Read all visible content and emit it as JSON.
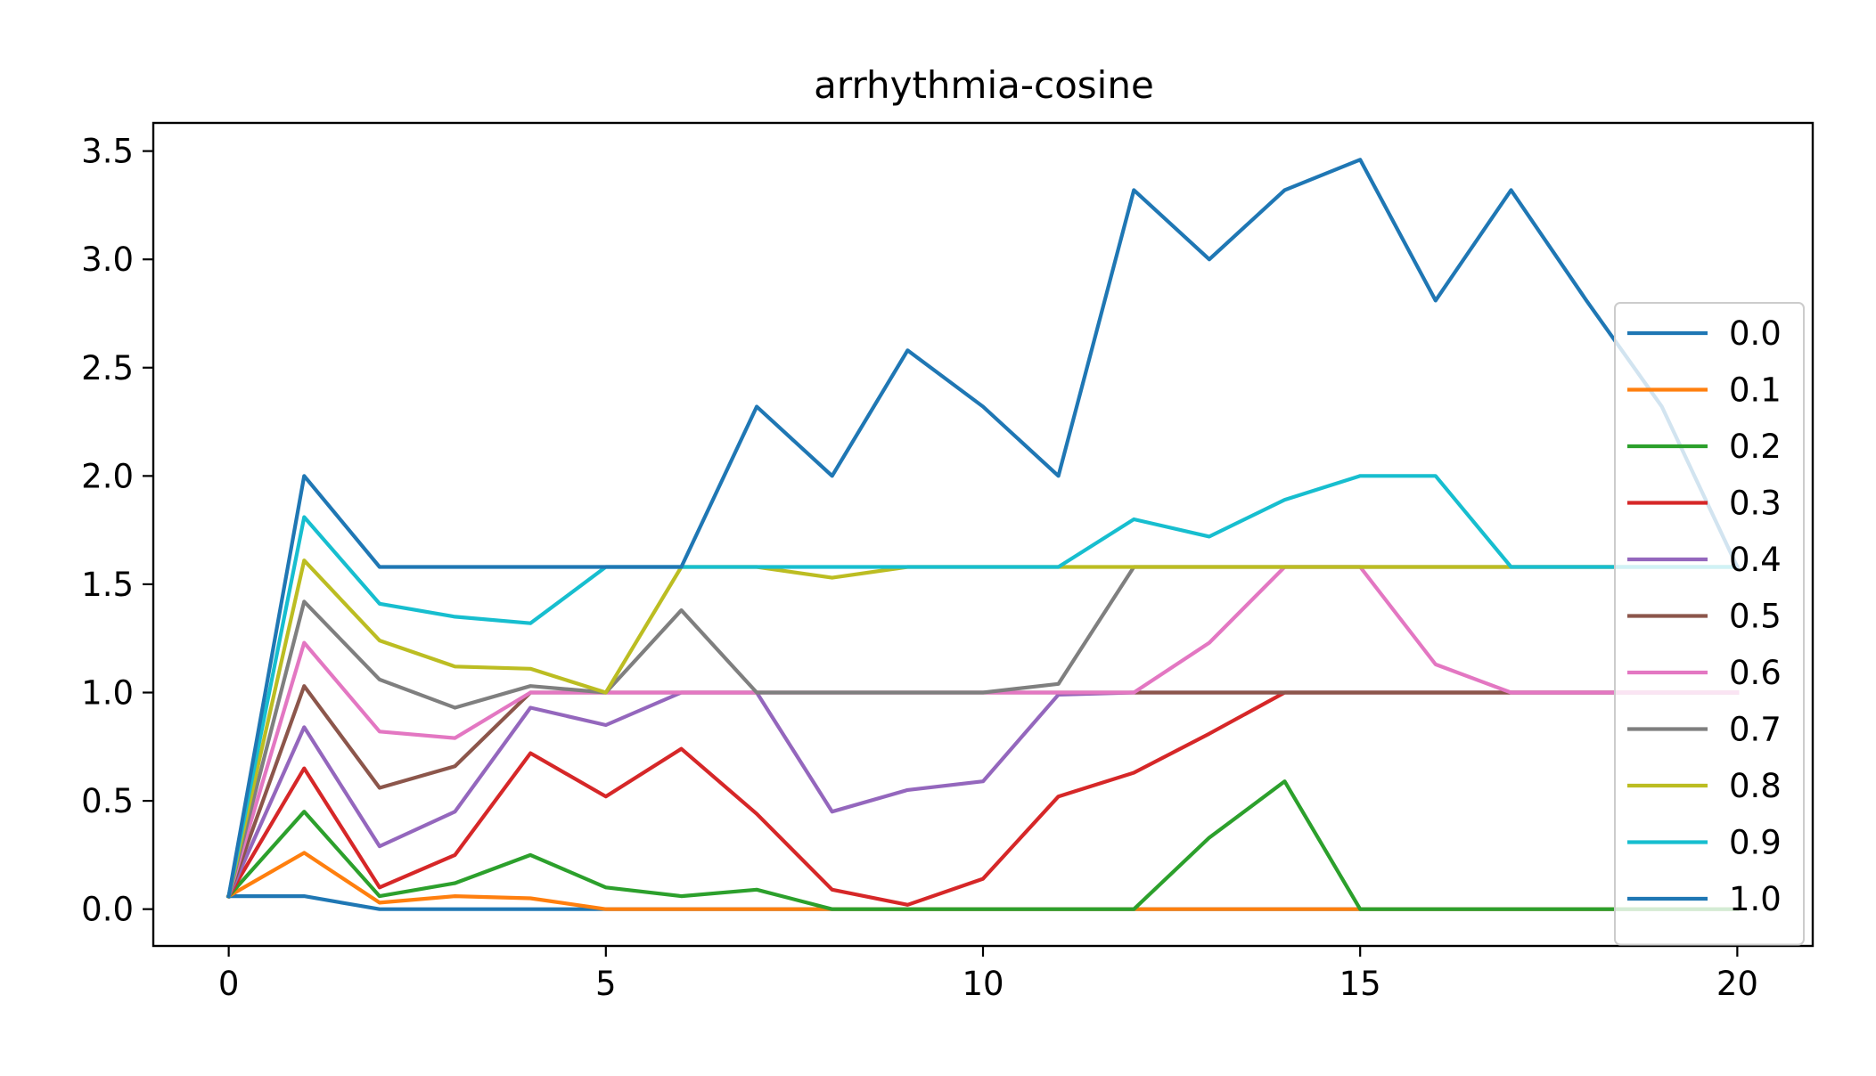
{
  "chart_data": {
    "type": "line",
    "title": "arrhythmia-cosine",
    "xlabel": "",
    "ylabel": "",
    "xlim": [
      -1,
      21
    ],
    "ylim": [
      -0.17,
      3.63
    ],
    "xticks": [
      0,
      5,
      10,
      15,
      20
    ],
    "xtick_labels": [
      "0",
      "5",
      "10",
      "15",
      "20"
    ],
    "yticks": [
      0.0,
      0.5,
      1.0,
      1.5,
      2.0,
      2.5,
      3.0,
      3.5
    ],
    "ytick_labels": [
      "0.0",
      "0.5",
      "1.0",
      "1.5",
      "2.0",
      "2.5",
      "3.0",
      "3.5"
    ],
    "grid": false,
    "legend_position": "right",
    "x": [
      0,
      1,
      2,
      3,
      4,
      5,
      6,
      7,
      8,
      9,
      10,
      11,
      12,
      13,
      14,
      15,
      16,
      17,
      18,
      19,
      20
    ],
    "series": [
      {
        "name": "0.0",
        "color": "#1f77b4",
        "values": [
          0.06,
          0.06,
          0.0,
          0.0,
          0.0,
          0.0,
          0.0,
          0.0,
          0.0,
          0.0,
          0.0,
          0.0,
          0.0,
          0.0,
          0.0,
          0.0,
          0.0,
          0.0,
          0.0,
          0.0,
          0.0
        ]
      },
      {
        "name": "0.1",
        "color": "#ff7f0e",
        "values": [
          0.06,
          0.26,
          0.03,
          0.06,
          0.05,
          0.0,
          0.0,
          0.0,
          0.0,
          0.0,
          0.0,
          0.0,
          0.0,
          0.0,
          0.0,
          0.0,
          0.0,
          0.0,
          0.0,
          0.0,
          0.0
        ]
      },
      {
        "name": "0.2",
        "color": "#2ca02c",
        "values": [
          0.06,
          0.45,
          0.06,
          0.12,
          0.25,
          0.1,
          0.06,
          0.09,
          0.0,
          0.0,
          0.0,
          0.0,
          0.0,
          0.33,
          0.59,
          0.0,
          0.0,
          0.0,
          0.0,
          0.0,
          0.0
        ]
      },
      {
        "name": "0.3",
        "color": "#d62728",
        "values": [
          0.06,
          0.65,
          0.1,
          0.25,
          0.72,
          0.52,
          0.74,
          0.44,
          0.09,
          0.02,
          0.14,
          0.52,
          0.63,
          0.81,
          1.0,
          1.0,
          1.0,
          1.0,
          1.0,
          1.0,
          1.0
        ]
      },
      {
        "name": "0.4",
        "color": "#9467bd",
        "values": [
          0.06,
          0.84,
          0.29,
          0.45,
          0.93,
          0.85,
          1.0,
          1.0,
          0.45,
          0.55,
          0.59,
          0.99,
          1.0,
          1.0,
          1.0,
          1.0,
          1.0,
          1.0,
          1.0,
          1.0,
          1.0
        ]
      },
      {
        "name": "0.5",
        "color": "#8c564b",
        "values": [
          0.06,
          1.03,
          0.56,
          0.66,
          1.0,
          1.0,
          1.0,
          1.0,
          1.0,
          1.0,
          1.0,
          1.0,
          1.0,
          1.0,
          1.0,
          1.0,
          1.0,
          1.0,
          1.0,
          1.0,
          1.0
        ]
      },
      {
        "name": "0.6",
        "color": "#e377c2",
        "values": [
          0.06,
          1.23,
          0.82,
          0.79,
          1.0,
          1.0,
          1.0,
          1.0,
          1.0,
          1.0,
          1.0,
          1.0,
          1.0,
          1.23,
          1.58,
          1.58,
          1.13,
          1.0,
          1.0,
          1.0,
          1.0
        ]
      },
      {
        "name": "0.7",
        "color": "#7f7f7f",
        "values": [
          0.06,
          1.42,
          1.06,
          0.93,
          1.03,
          1.0,
          1.38,
          1.0,
          1.0,
          1.0,
          1.0,
          1.04,
          1.58,
          1.58,
          1.58,
          1.58,
          1.58,
          1.58,
          1.58,
          1.58,
          1.58
        ]
      },
      {
        "name": "0.8",
        "color": "#bcbd22",
        "values": [
          0.06,
          1.61,
          1.24,
          1.12,
          1.11,
          1.0,
          1.58,
          1.58,
          1.53,
          1.58,
          1.58,
          1.58,
          1.58,
          1.58,
          1.58,
          1.58,
          1.58,
          1.58,
          1.58,
          1.58,
          1.58
        ]
      },
      {
        "name": "0.9",
        "color": "#17becf",
        "values": [
          0.06,
          1.81,
          1.41,
          1.35,
          1.32,
          1.58,
          1.58,
          1.58,
          1.58,
          1.58,
          1.58,
          1.58,
          1.8,
          1.72,
          1.89,
          2.0,
          2.0,
          1.58,
          1.58,
          1.58,
          1.58
        ]
      },
      {
        "name": "1.0",
        "color": "#1f77b4",
        "values": [
          0.06,
          2.0,
          1.58,
          1.58,
          1.58,
          1.58,
          1.58,
          2.32,
          2.0,
          2.58,
          2.32,
          2.0,
          3.32,
          3.0,
          3.32,
          3.46,
          2.81,
          3.32,
          2.81,
          2.32,
          1.58
        ]
      }
    ]
  }
}
